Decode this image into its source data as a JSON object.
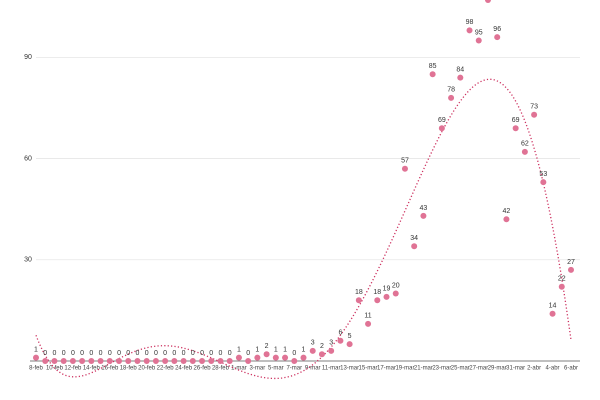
{
  "chart_data": {
    "type": "scatter",
    "categories": [
      "8-feb",
      null,
      "10-feb",
      null,
      "12-feb",
      null,
      "14-feb",
      null,
      "16-feb",
      null,
      "18-feb",
      null,
      "20-feb",
      null,
      "22-feb",
      null,
      "24-feb",
      null,
      "26-feb",
      null,
      "28-feb",
      null,
      "1-mar",
      null,
      "3-mar",
      null,
      "5-mar",
      null,
      "7-mar",
      null,
      "9-mar",
      null,
      "11-mar",
      null,
      "13-mar",
      null,
      "15-mar",
      null,
      "17-mar",
      null,
      "19-mar",
      null,
      "21-mar",
      null,
      "23-mar",
      null,
      "25-mar",
      null,
      "27-mar",
      null,
      "29-mar",
      null,
      "31-mar",
      null,
      "2-abr",
      null,
      "4-abr",
      null,
      "6-abr"
    ],
    "values": [
      1,
      0,
      0,
      0,
      0,
      0,
      0,
      0,
      0,
      0,
      0,
      0,
      0,
      0,
      0,
      0,
      0,
      0,
      0,
      0,
      0,
      0,
      1,
      0,
      1,
      2,
      1,
      1,
      0,
      1,
      3,
      2,
      3,
      6,
      5,
      18,
      11,
      18,
      19,
      20,
      57,
      34,
      43,
      85,
      69,
      78,
      84,
      98,
      95,
      107,
      96,
      42,
      69,
      62,
      73,
      53,
      14,
      22,
      27
    ],
    "color": "#e07395",
    "trendline": true,
    "trend_color": "#cc2f5e",
    "ylim": [
      0,
      107
    ],
    "yticks": [
      30,
      60,
      90
    ],
    "grid": true
  }
}
